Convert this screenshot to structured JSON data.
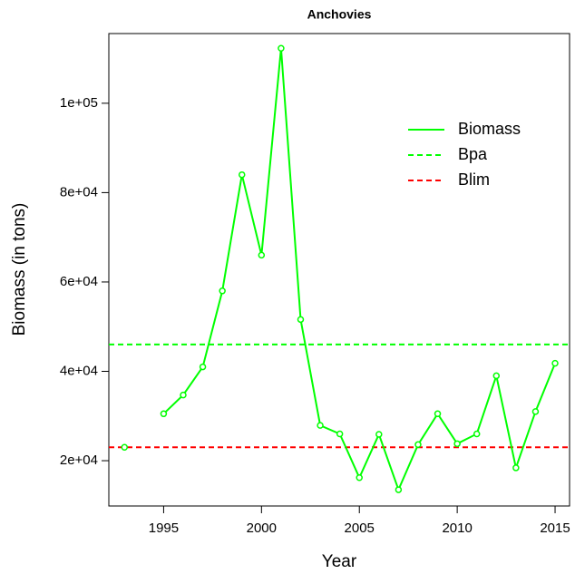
{
  "chart_data": {
    "type": "line",
    "title": "Anchovies",
    "x_label": "Year",
    "y_label": "Biomass (in tons)",
    "x": [
      1993,
      1994,
      1995,
      1996,
      1997,
      1998,
      1999,
      2000,
      2001,
      2002,
      2003,
      2004,
      2005,
      2006,
      2007,
      2008,
      2009,
      2010,
      2011,
      2012,
      2013,
      2014,
      2015
    ],
    "series": [
      {
        "name": "Biomass",
        "color": "#00ff00",
        "values": [
          23000,
          null,
          30500,
          34700,
          41000,
          58000,
          84000,
          66000,
          112300,
          51600,
          27900,
          26000,
          16200,
          25900,
          13500,
          23600,
          30500,
          23800,
          26000,
          39000,
          18400,
          31000,
          41800
        ]
      }
    ],
    "hlines": [
      {
        "name": "Bpa",
        "color": "#00ff00",
        "value": 46000
      },
      {
        "name": "Blim",
        "color": "#ff0000",
        "value": 23000
      }
    ],
    "xlim": [
      1992.2,
      2015.74
    ],
    "ylim": [
      9860,
      115600
    ],
    "xticks": [
      1995,
      2000,
      2005,
      2010,
      2015
    ],
    "yticks": [
      {
        "value": 20000,
        "label": "2e+04"
      },
      {
        "value": 40000,
        "label": "4e+04"
      },
      {
        "value": 60000,
        "label": "6e+04"
      },
      {
        "value": 80000,
        "label": "8e+04"
      },
      {
        "value": 100000,
        "label": "1e+05"
      }
    ],
    "legend": "topright"
  }
}
